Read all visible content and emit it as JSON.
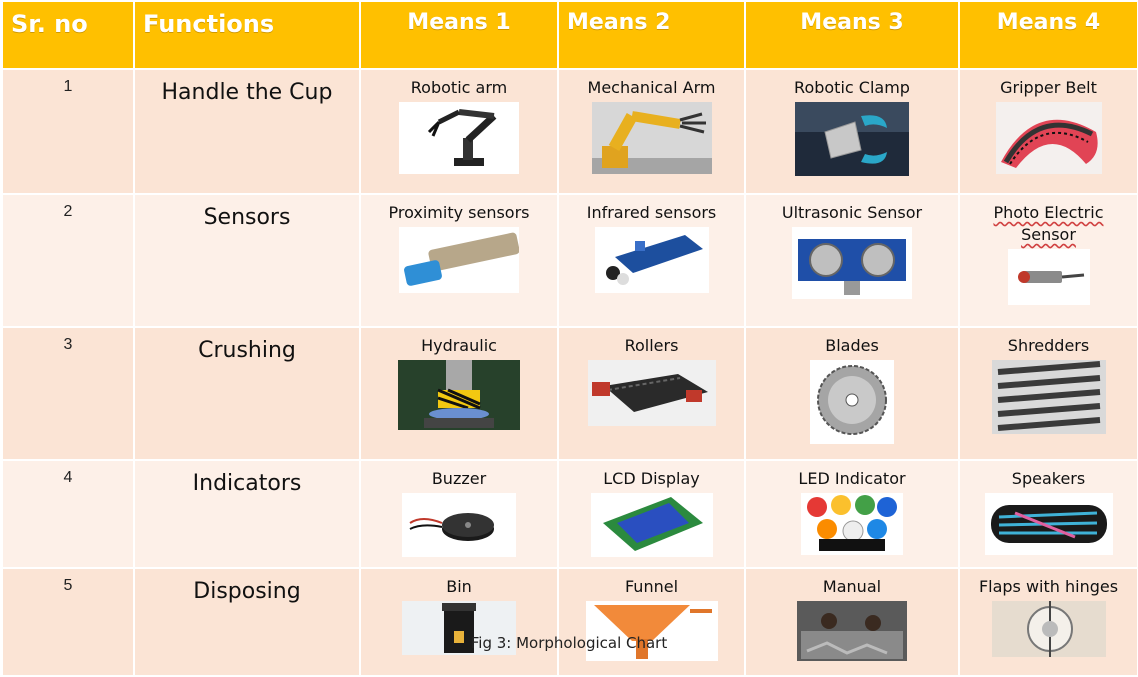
{
  "headers": {
    "sr": "Sr. no",
    "functions": "Functions",
    "means1": "Means 1",
    "means2": "Means 2",
    "means3": "Means 3",
    "means4": "Means 4"
  },
  "rows": [
    {
      "sr": "1",
      "function": "Handle the Cup",
      "means": [
        {
          "label": "Robotic arm",
          "icon": "robotic-arm-image"
        },
        {
          "label": "Mechanical Arm",
          "icon": "mechanical-arm-image"
        },
        {
          "label": "Robotic Clamp",
          "icon": "robotic-clamp-image"
        },
        {
          "label": "Gripper Belt",
          "icon": "gripper-belt-image"
        }
      ]
    },
    {
      "sr": "2",
      "function": "Sensors",
      "means": [
        {
          "label": "Proximity sensors",
          "icon": "proximity-sensor-image"
        },
        {
          "label": "Infrared sensors",
          "icon": "infrared-sensor-image"
        },
        {
          "label": "Ultrasonic Sensor",
          "icon": "ultrasonic-sensor-image"
        },
        {
          "label": "Photo Electric Sensor",
          "icon": "photo-electric-sensor-image"
        }
      ]
    },
    {
      "sr": "3",
      "function": "Crushing",
      "means": [
        {
          "label": "Hydraulic",
          "icon": "hydraulic-press-image"
        },
        {
          "label": "Rollers",
          "icon": "rollers-image"
        },
        {
          "label": "Blades",
          "icon": "saw-blade-image"
        },
        {
          "label": "Shredders",
          "icon": "shredder-image"
        }
      ]
    },
    {
      "sr": "4",
      "function": "Indicators",
      "means": [
        {
          "label": "Buzzer",
          "icon": "buzzer-image"
        },
        {
          "label": "LCD Display",
          "icon": "lcd-display-image"
        },
        {
          "label": "LED Indicator",
          "icon": "led-indicator-image"
        },
        {
          "label": "Speakers",
          "icon": "speaker-image"
        }
      ]
    },
    {
      "sr": "5",
      "function": "Disposing",
      "means": [
        {
          "label": "Bin",
          "icon": "bin-image"
        },
        {
          "label": "Funnel",
          "icon": "funnel-image"
        },
        {
          "label": "Manual",
          "icon": "manual-sorting-image"
        },
        {
          "label": "Flaps with hinges",
          "icon": "flaps-hinges-image"
        }
      ]
    }
  ],
  "caption": "Fig 3: Morphological Chart",
  "colors": {
    "header_bg": "#ffc000",
    "row_bg_odd": "#fbe4d5",
    "row_bg_even": "#fdf0e8",
    "header_text": "#ffffff"
  }
}
